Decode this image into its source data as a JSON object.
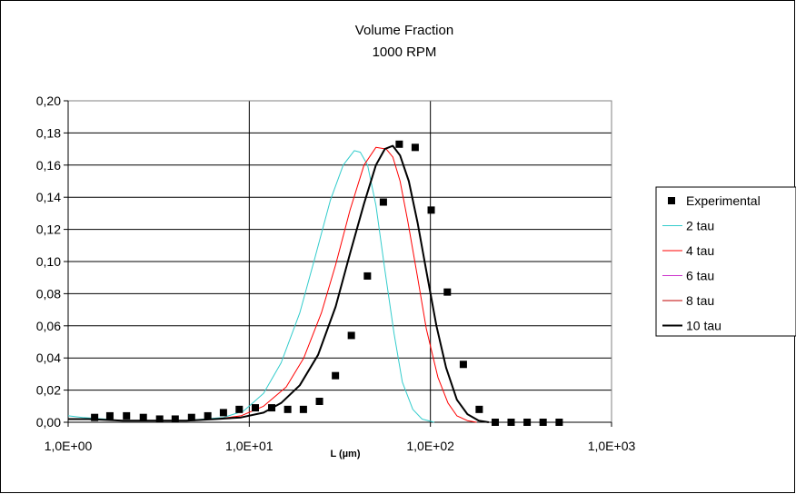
{
  "chart_data": {
    "type": "scatter",
    "title": "Volume Fraction",
    "subtitle": "1000 RPM",
    "xlabel": "L (µm)",
    "ylabel": "",
    "xscale": "log",
    "xlim": [
      1,
      1000
    ],
    "ylim": [
      0,
      0.2
    ],
    "x_tick_values": [
      1,
      10,
      100,
      1000
    ],
    "x_tick_labels": [
      "1,0E+00",
      "1,0E+01",
      "1,0E+02",
      "1,0E+03"
    ],
    "y_tick_values": [
      0,
      0.02,
      0.04,
      0.06,
      0.08,
      0.1,
      0.12,
      0.14,
      0.16,
      0.18,
      0.2
    ],
    "y_tick_labels": [
      "0,00",
      "0,02",
      "0,04",
      "0,06",
      "0,08",
      "0,10",
      "0,12",
      "0,14",
      "0,16",
      "0,18",
      "0,20"
    ],
    "grid": "both",
    "legend_position": "right",
    "series": [
      {
        "name": "Experimental",
        "kind": "marker",
        "color": "#000000",
        "x": [
          1.4,
          1.7,
          2.1,
          2.6,
          3.2,
          3.9,
          4.8,
          5.9,
          7.2,
          8.8,
          10.8,
          13.3,
          16.3,
          19.9,
          24.4,
          29.9,
          36.6,
          44.9,
          55.0,
          67.3,
          82.4,
          101,
          124,
          152,
          186,
          228,
          279,
          342,
          419,
          514
        ],
        "y": [
          0.003,
          0.004,
          0.004,
          0.003,
          0.002,
          0.002,
          0.003,
          0.004,
          0.006,
          0.008,
          0.009,
          0.009,
          0.008,
          0.008,
          0.013,
          0.029,
          0.054,
          0.091,
          0.137,
          0.173,
          0.171,
          0.132,
          0.081,
          0.036,
          0.008,
          0.0,
          0.0,
          0.0,
          0.0,
          0.0
        ]
      },
      {
        "name": "2 tau",
        "kind": "line",
        "color": "#33CCCC",
        "x": [
          0.9,
          1.2,
          1.6,
          2.0,
          2.6,
          3.3,
          4.3,
          5.6,
          7.2,
          9.3,
          12.0,
          15.0,
          19.0,
          23.0,
          28.0,
          33.0,
          38.0,
          41.0,
          45.0,
          50.0,
          56.0,
          63.0,
          70.0,
          80.0,
          90.0,
          105.0
        ],
        "y": [
          0.004,
          0.003,
          0.002,
          0.001,
          0.001,
          0.001,
          0.001,
          0.002,
          0.003,
          0.007,
          0.018,
          0.037,
          0.068,
          0.102,
          0.138,
          0.16,
          0.169,
          0.168,
          0.16,
          0.135,
          0.095,
          0.055,
          0.025,
          0.008,
          0.002,
          0.0
        ]
      },
      {
        "name": "4 tau",
        "kind": "line",
        "color": "#FF0000",
        "x": [
          0.9,
          1.3,
          2.0,
          3.0,
          4.5,
          6.5,
          9.0,
          12.0,
          16.0,
          20.0,
          25.0,
          30.0,
          36.0,
          43.0,
          50.0,
          57.0,
          62.0,
          68.0,
          75.0,
          85.0,
          95.0,
          110.0,
          125.0,
          140.0,
          160.0,
          180.0
        ],
        "y": [
          0.002,
          0.002,
          0.001,
          0.001,
          0.001,
          0.002,
          0.004,
          0.01,
          0.022,
          0.04,
          0.068,
          0.098,
          0.132,
          0.16,
          0.171,
          0.17,
          0.165,
          0.15,
          0.125,
          0.09,
          0.058,
          0.028,
          0.012,
          0.004,
          0.001,
          0.0
        ]
      },
      {
        "name": "6 tau",
        "kind": "line",
        "color": "#CC33CC",
        "x": [
          0.9,
          1.3,
          2.0,
          3.0,
          4.5,
          6.5,
          9.0,
          12.0,
          15.0,
          19.0,
          24.0,
          30.0,
          36.0,
          43.0,
          50.0,
          56.0,
          62.0,
          68.0,
          76.0,
          85.0,
          95.0,
          108.0,
          122.0,
          140.0,
          160.0,
          185.0,
          210.0
        ],
        "y": [
          0.002,
          0.002,
          0.001,
          0.001,
          0.001,
          0.002,
          0.003,
          0.006,
          0.012,
          0.023,
          0.042,
          0.072,
          0.105,
          0.136,
          0.16,
          0.17,
          0.172,
          0.166,
          0.15,
          0.124,
          0.094,
          0.06,
          0.034,
          0.014,
          0.005,
          0.001,
          0.0
        ]
      },
      {
        "name": "8 tau",
        "kind": "line",
        "color": "#C00000",
        "x": [
          0.9,
          1.3,
          2.0,
          3.0,
          4.5,
          6.5,
          9.0,
          12.0,
          15.0,
          19.0,
          24.0,
          30.0,
          36.0,
          43.0,
          50.0,
          56.0,
          62.0,
          68.0,
          76.0,
          85.0,
          95.0,
          108.0,
          122.0,
          140.0,
          160.0,
          185.0,
          210.0
        ],
        "y": [
          0.002,
          0.002,
          0.001,
          0.001,
          0.001,
          0.002,
          0.003,
          0.006,
          0.012,
          0.023,
          0.042,
          0.072,
          0.105,
          0.136,
          0.16,
          0.17,
          0.172,
          0.166,
          0.15,
          0.124,
          0.094,
          0.06,
          0.034,
          0.014,
          0.005,
          0.001,
          0.0
        ]
      },
      {
        "name": "10 tau",
        "kind": "line",
        "color": "#000000",
        "x": [
          0.9,
          1.3,
          2.0,
          3.0,
          4.5,
          6.5,
          9.0,
          12.0,
          15.0,
          19.0,
          24.0,
          30.0,
          36.0,
          43.0,
          50.0,
          56.0,
          62.0,
          68.0,
          76.0,
          85.0,
          95.0,
          108.0,
          122.0,
          140.0,
          160.0,
          185.0,
          210.0
        ],
        "y": [
          0.002,
          0.002,
          0.001,
          0.001,
          0.001,
          0.002,
          0.003,
          0.006,
          0.012,
          0.023,
          0.042,
          0.072,
          0.105,
          0.136,
          0.16,
          0.17,
          0.172,
          0.166,
          0.15,
          0.124,
          0.094,
          0.06,
          0.034,
          0.014,
          0.005,
          0.001,
          0.0
        ]
      }
    ]
  }
}
